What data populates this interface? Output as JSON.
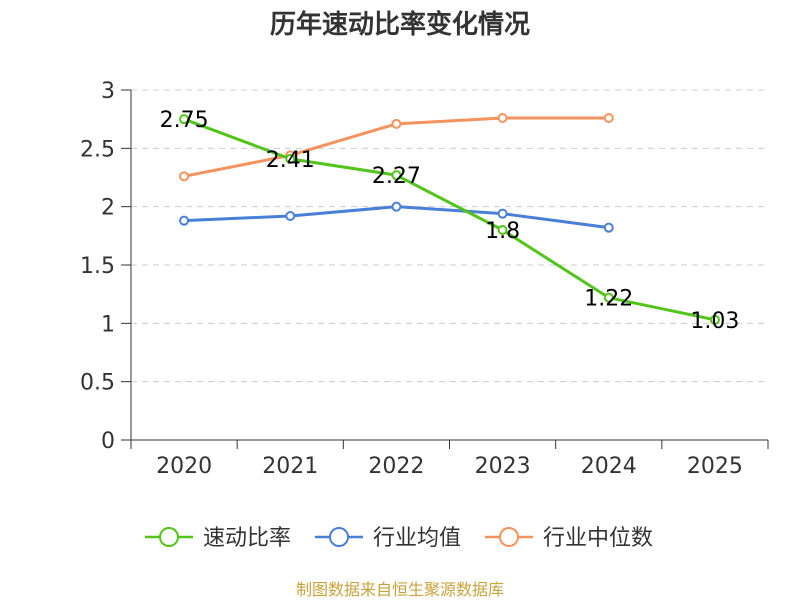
{
  "chart_data": {
    "type": "line",
    "title": "历年速动比率变化情况",
    "categories": [
      "2020",
      "2021",
      "2022",
      "2023",
      "2024",
      "2025"
    ],
    "ylim": [
      0,
      3
    ],
    "yticks": [
      0,
      0.5,
      1,
      1.5,
      2,
      2.5,
      3
    ],
    "ytick_labels": [
      "0",
      "0.5",
      "1",
      "1.5",
      "2",
      "2.5",
      "3"
    ],
    "grid": true,
    "legend_position": "bottom",
    "series": [
      {
        "name": "速动比率",
        "color": "#52c41a",
        "values": [
          2.75,
          2.41,
          2.27,
          1.8,
          1.22,
          1.03
        ],
        "labels": [
          "2.75",
          "2.41",
          "2.27",
          "1.8",
          "1.22",
          "1.03"
        ],
        "show_labels": true
      },
      {
        "name": "行业均值",
        "color": "#4a7fd8",
        "values": [
          1.88,
          1.92,
          2.0,
          1.94,
          1.82,
          null
        ],
        "show_labels": false
      },
      {
        "name": "行业中位数",
        "color": "#f5925e",
        "values": [
          2.26,
          2.44,
          2.71,
          2.76,
          2.76,
          null
        ],
        "show_labels": false
      }
    ]
  },
  "footer": {
    "source": "制图数据来自恒生聚源数据库"
  }
}
